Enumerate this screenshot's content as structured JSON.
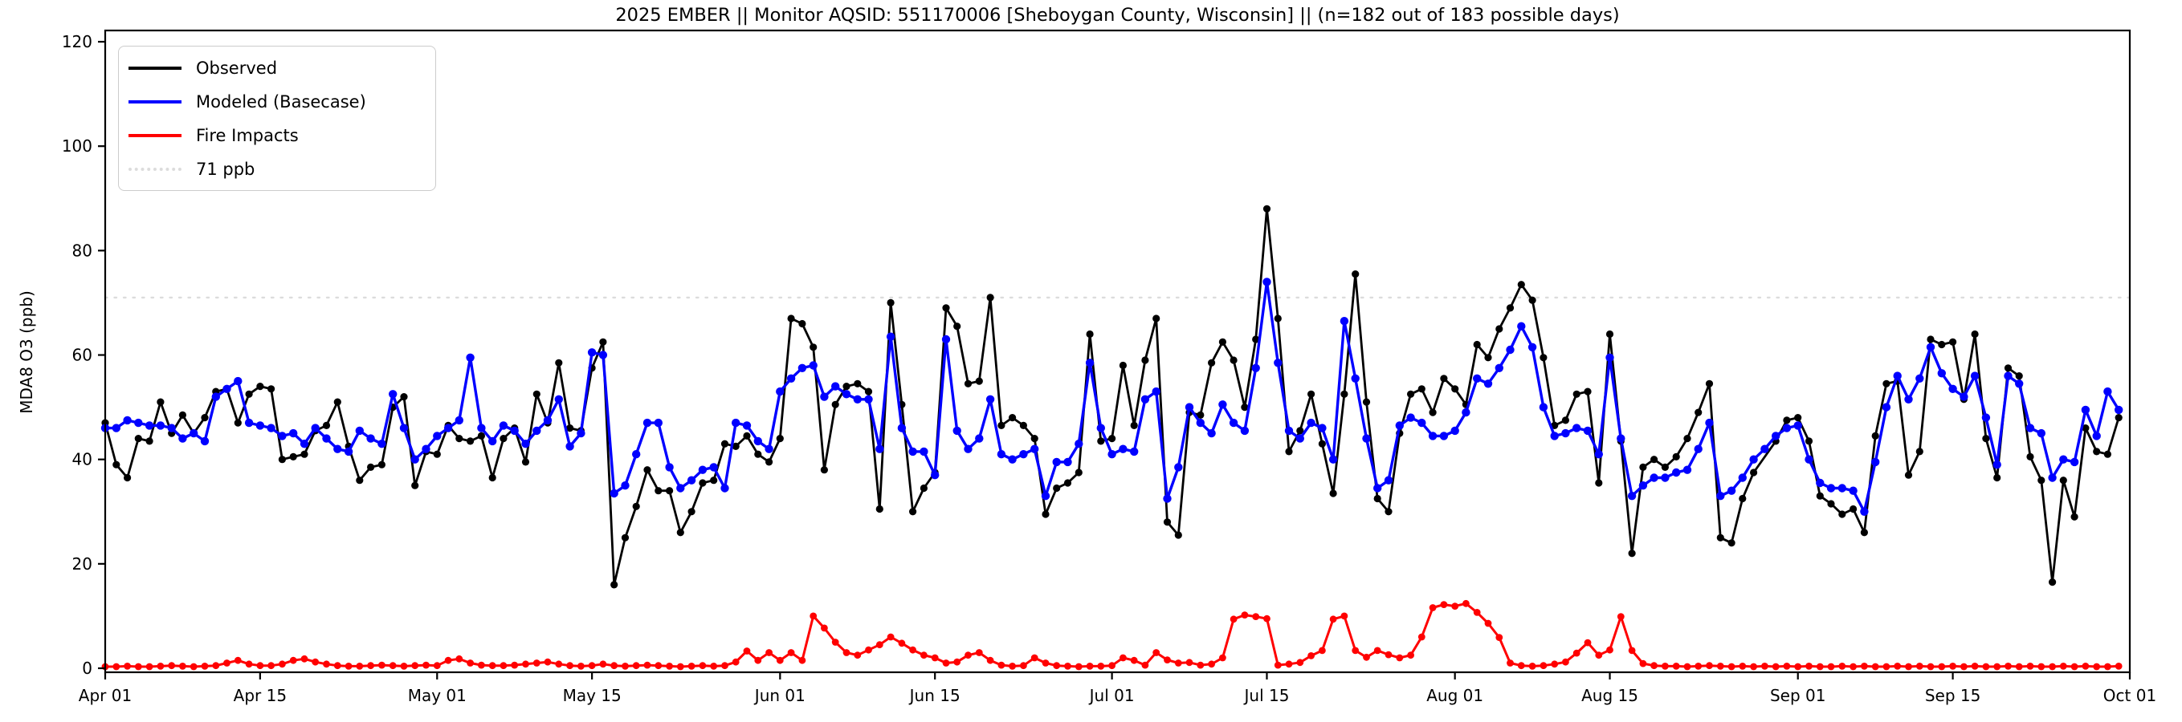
{
  "chart_data": {
    "type": "line",
    "title": "2025 EMBER || Monitor AQSID: 551170006 [Sheboygan County, Wisconsin] || (n=182 out of 183 possible days)",
    "ylabel": "MDA8 O3 (ppb)",
    "xlabel": "",
    "ylim": [
      0,
      120
    ],
    "yticks": [
      0,
      20,
      40,
      60,
      80,
      100,
      120
    ],
    "n_days": 183,
    "x_start": "Apr 01",
    "x_end": "Oct 01",
    "xticks": [
      {
        "label": "Apr 01",
        "day": 0
      },
      {
        "label": "Apr 15",
        "day": 14
      },
      {
        "label": "May 01",
        "day": 30
      },
      {
        "label": "May 15",
        "day": 44
      },
      {
        "label": "Jun 01",
        "day": 61
      },
      {
        "label": "Jun 15",
        "day": 75
      },
      {
        "label": "Jul 01",
        "day": 91
      },
      {
        "label": "Jul 15",
        "day": 105
      },
      {
        "label": "Aug 01",
        "day": 122
      },
      {
        "label": "Aug 15",
        "day": 136
      },
      {
        "label": "Sep 01",
        "day": 153
      },
      {
        "label": "Sep 15",
        "day": 167
      },
      {
        "label": "Oct 01",
        "day": 183
      }
    ],
    "threshold": {
      "label": "71 ppb",
      "value": 71,
      "color": "#dcdcdc"
    },
    "legend_position": "upper left",
    "grid": false,
    "series": [
      {
        "name": "Observed",
        "color": "#000000",
        "values": [
          47,
          39,
          36.5,
          44,
          43.5,
          51,
          45,
          48.5,
          45,
          48,
          53,
          53.5,
          47,
          52.5,
          54,
          53.5,
          40,
          40.5,
          41,
          45.5,
          46.5,
          51,
          42.5,
          36,
          38.5,
          39,
          50,
          52,
          35,
          41.5,
          41,
          46.5,
          44,
          43.5,
          44.5,
          36.5,
          44,
          46,
          39.5,
          52.5,
          47,
          58.5,
          46,
          45.5,
          57.5,
          62.5,
          16,
          25,
          31,
          38,
          34,
          34,
          26,
          30,
          35.5,
          36,
          43,
          42.5,
          44.5,
          41,
          39.5,
          44,
          67,
          66,
          61.5,
          38,
          50.5,
          54,
          54.5,
          53,
          30.5,
          70,
          50.5,
          30,
          34.5,
          37.5,
          69,
          65.5,
          54.5,
          55,
          71,
          46.5,
          48,
          46.5,
          44,
          29.5,
          34.5,
          35.5,
          37.5,
          64,
          43.5,
          44,
          58,
          46.5,
          59,
          67,
          28,
          25.5,
          49,
          48.5,
          58.5,
          62.5,
          59,
          50,
          63,
          88,
          67,
          41.5,
          45.5,
          52.5,
          43,
          33.5,
          52.5,
          75.5,
          51,
          32.5,
          30,
          45,
          52.5,
          53.5,
          49,
          55.5,
          53.5,
          50.5,
          62,
          59.5,
          65,
          69,
          73.5,
          70.5,
          59.5,
          46.5,
          47.5,
          52.5,
          53,
          35.5,
          64,
          43.5,
          22,
          38.5,
          40,
          38.5,
          40.5,
          44,
          49,
          54.5,
          25,
          24,
          32.5,
          37.5,
          null,
          43.5,
          47.5,
          48,
          43.5,
          33,
          31.5,
          29.5,
          30.5,
          26,
          44.5,
          54.5,
          55,
          37,
          41.5,
          63,
          62,
          62.5,
          51.5,
          64,
          44,
          36.5,
          57.5,
          56,
          40.5,
          36,
          16.5,
          36,
          29,
          46,
          41.5,
          41,
          48
        ]
      },
      {
        "name": "Modeled (Basecase)",
        "color": "#0000ff",
        "values": [
          46,
          46,
          47.5,
          47,
          46.5,
          46.5,
          46,
          44,
          45,
          43.5,
          52,
          53.5,
          55,
          47,
          46.5,
          46,
          44.5,
          45,
          43,
          46,
          44,
          42,
          41.5,
          45.5,
          44,
          43,
          52.5,
          46,
          40,
          42,
          44.5,
          46,
          47.5,
          59.5,
          46,
          43.5,
          46.5,
          45.5,
          43,
          45.5,
          47.5,
          51.5,
          42.5,
          45,
          60.5,
          60,
          33.5,
          35,
          41,
          47,
          47,
          38.5,
          34.5,
          36,
          38,
          38.5,
          34.5,
          47,
          46.5,
          43.5,
          42,
          53,
          55.5,
          57.5,
          58,
          52,
          54,
          52.5,
          51.5,
          51.5,
          42,
          63.5,
          46,
          41.5,
          41.5,
          37,
          63,
          45.5,
          42,
          44,
          51.5,
          41,
          40,
          41,
          42,
          33,
          39.5,
          39.5,
          43,
          58.5,
          46,
          41,
          42,
          41.5,
          51.5,
          53,
          32.5,
          38.5,
          50,
          47,
          45,
          50.5,
          47,
          45.5,
          57.5,
          74,
          58.5,
          45.5,
          44,
          47,
          46,
          40,
          66.5,
          55.5,
          44,
          34.5,
          36,
          46.5,
          48,
          47,
          44.5,
          44.5,
          45.5,
          49,
          55.5,
          54.5,
          57.5,
          61,
          65.5,
          61.5,
          50,
          44.5,
          45,
          46,
          45.5,
          41,
          59.5,
          44,
          33,
          35,
          36.5,
          36.5,
          37.5,
          38,
          42,
          47,
          33,
          34,
          36.5,
          40,
          42,
          44.5,
          46,
          46.5,
          40,
          35.5,
          34.5,
          34.5,
          34,
          30,
          39.5,
          50,
          56,
          51.5,
          55.5,
          61.5,
          56.5,
          53.5,
          52,
          56,
          48,
          39,
          56,
          54.5,
          46,
          45,
          36.5,
          40,
          39.5,
          49.5,
          44.5,
          53,
          49.5
        ]
      },
      {
        "name": "Fire Impacts",
        "color": "#ff0000",
        "values": [
          0.3,
          0.3,
          0.4,
          0.3,
          0.3,
          0.4,
          0.5,
          0.4,
          0.3,
          0.4,
          0.5,
          1.0,
          1.5,
          0.8,
          0.5,
          0.5,
          0.8,
          1.5,
          1.8,
          1.2,
          0.8,
          0.5,
          0.4,
          0.4,
          0.5,
          0.6,
          0.5,
          0.4,
          0.5,
          0.6,
          0.5,
          1.5,
          1.8,
          1.0,
          0.6,
          0.5,
          0.5,
          0.6,
          0.8,
          1.0,
          1.2,
          0.8,
          0.5,
          0.4,
          0.5,
          0.8,
          0.5,
          0.4,
          0.5,
          0.6,
          0.5,
          0.4,
          0.3,
          0.4,
          0.5,
          0.4,
          0.5,
          1.2,
          3.3,
          1.5,
          3.0,
          1.5,
          3.0,
          1.5,
          10.0,
          7.7,
          5.0,
          3.0,
          2.5,
          3.5,
          4.5,
          6.0,
          4.8,
          3.5,
          2.5,
          2.0,
          1.0,
          1.2,
          2.5,
          3.0,
          1.5,
          0.6,
          0.4,
          0.5,
          2.0,
          1.0,
          0.5,
          0.4,
          0.3,
          0.4,
          0.4,
          0.5,
          2.0,
          1.5,
          0.6,
          3.0,
          1.6,
          1.0,
          1.1,
          0.6,
          0.8,
          2.0,
          9.4,
          10.2,
          9.9,
          9.5,
          0.6,
          0.8,
          1.1,
          2.4,
          3.4,
          9.4,
          10.0,
          3.4,
          2.1,
          3.4,
          2.6,
          2.0,
          2.5,
          6.0,
          11.6,
          12.2,
          11.9,
          12.4,
          10.7,
          8.6,
          5.9,
          1.0,
          0.5,
          0.4,
          0.5,
          0.8,
          1.2,
          2.9,
          4.9,
          2.5,
          3.5,
          9.9,
          3.4,
          0.9,
          0.5,
          0.4,
          0.4,
          0.3,
          0.4,
          0.5,
          0.4,
          0.3,
          0.4,
          0.3,
          0.4,
          0.3,
          0.4,
          0.3,
          0.4,
          0.3,
          0.3,
          0.4,
          0.3,
          0.4,
          0.3,
          0.3,
          0.4,
          0.3,
          0.4,
          0.3,
          0.3,
          0.4,
          0.3,
          0.4,
          0.3,
          0.3,
          0.4,
          0.3,
          0.4,
          0.3,
          0.3,
          0.4,
          0.3,
          0.4,
          0.3,
          0.3,
          0.4
        ]
      }
    ]
  }
}
